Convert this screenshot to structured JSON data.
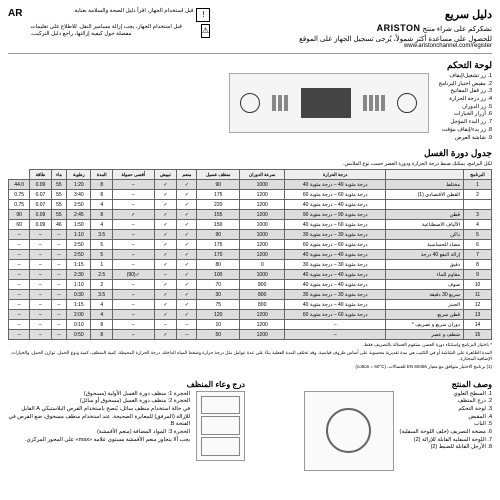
{
  "header": {
    "title": "دليل سريع",
    "thanks": "نشكركم على شراء منتج",
    "brand": "ARISTON",
    "support": "للحصول على مساعدة أكثر شمولاً، يُرجى تسجيل الجهاز على الموقع",
    "url": "www.aristonchannel.com/register",
    "warning": "قبل استخدام الجهاز، اقرأ دليل الصحة والسلامة بعناية.",
    "warning2": "قبل استخدام الجهاز، يجب إزالة مسامير النقل. للاطلاع على تعليمات مفصلة حول كيفية إزالتها، راجع دليل التركيب.",
    "lang": "AR"
  },
  "control_panel": {
    "title": "لوحة التحكم",
    "items": [
      "1. زر تشغيل/إيقاف",
      "2. مقبض اختيار البرنامج",
      "3. زر قفل المفاتيح",
      "4. زر درجة الحرارة",
      "5. زر الدوران",
      "6. أزرار الخيارات",
      "7. زر البدء المؤجل",
      "8. زر بدء/إيقاف مؤقت",
      "9. شاشة العرض"
    ]
  },
  "cycle_table": {
    "title": "جدول دورة الغسل",
    "desc": "لكل البرامج، يمكنك ضبط درجة الحرارة ودورة العصر حسب نوع الملابس.",
    "headers": [
      "البرنامج",
      "",
      "درجة الحرارة",
      "سرعة الدوران",
      "منظف غسيل",
      "منعم",
      "تبييض",
      "أقصى حمولة",
      "المدة",
      "رطوبة",
      "ماء",
      "طاقة"
    ],
    "rows": [
      {
        "n": 1,
        "name": "مختلط",
        "temps": "درجة مئوية 40 – درجة مئوية 40",
        "spin": 1000,
        "t": "90",
        "d1": "✓",
        "d2": "✓",
        "d3": "–",
        "load": 8,
        "dur": "1:20",
        "h": "55",
        "w": "0.09",
        "e": "44.0",
        "shade": true
      },
      {
        "n": 2,
        "name": "القطن الاقتصادي (1)",
        "temps": "درجة مئوية 60 – درجة مئوية 60",
        "spin": 1200,
        "t": "175",
        "d1": "✓",
        "d2": "✓",
        "d3": "–",
        "load": 8,
        "dur": "3:40",
        "h": "55",
        "w": "0.07",
        "e": "0.75",
        "shade": false
      },
      {
        "n": "",
        "name": "",
        "temps": "درجة مئوية 40 – درجة مئوية 40",
        "spin": 1200,
        "t": "220",
        "d1": "✓",
        "d2": "✓",
        "d3": "–",
        "load": 4,
        "dur": "2:50",
        "h": "55",
        "w": "0.07",
        "e": "0.75",
        "shade": false
      },
      {
        "n": 3,
        "name": "قطن",
        "temps": "درجة مئوية 90 – درجة مئوية 90",
        "spin": 1200,
        "t": "155",
        "d1": "✓",
        "d2": "✓",
        "d3": "✓",
        "load": 8,
        "dur": "2:45",
        "h": "55",
        "w": "0.09",
        "e": "90",
        "shade": true
      },
      {
        "n": 4,
        "name": "الألياف الاصطناعية",
        "temps": "درجة مئوية 60 – درجة مئوية 40",
        "spin": 1000,
        "t": "150",
        "d1": "✓",
        "d2": "✓",
        "d3": "–",
        "load": 4,
        "dur": "1:50",
        "h": "46",
        "w": "0.09",
        "e": "60",
        "shade": false
      },
      {
        "n": 5,
        "name": "داكن",
        "temps": "درجة مئوية 30 – درجة مئوية 30",
        "spin": 1000,
        "t": "90",
        "d1": "✓",
        "d2": "✓",
        "d3": "–",
        "load": 3.5,
        "dur": "1:10",
        "h": "–",
        "w": "–",
        "e": "–",
        "shade": true
      },
      {
        "n": 6,
        "name": "مضاد للحساسية",
        "temps": "درجة مئوية 60 – درجة مئوية 60",
        "spin": 1200,
        "t": "175",
        "d1": "✓",
        "d2": "✓",
        "d3": "–",
        "load": 5,
        "dur": "2:50",
        "h": "–",
        "w": "–",
        "e": "–",
        "shade": false
      },
      {
        "n": 7,
        "name": "إزالة البقع 40 درجة",
        "temps": "درجة مئوية 40 – درجة مئوية 40",
        "spin": 1200,
        "t": "170",
        "d1": "✓",
        "d2": "✓",
        "d3": "–",
        "load": 5,
        "dur": "2:50",
        "h": "–",
        "w": "–",
        "e": "–",
        "shade": true
      },
      {
        "n": 8,
        "name": "دقيق",
        "temps": "درجة مئوية 30 – درجة مئوية 30",
        "spin": 0,
        "t": "80",
        "d1": "✓",
        "d2": "✓",
        "d3": "–",
        "load": 1,
        "dur": "1:15",
        "h": "–",
        "w": "–",
        "e": "–",
        "shade": false
      },
      {
        "n": 9,
        "name": "مقاوم للماء",
        "temps": "درجة مئوية 40 – درجة مئوية 40",
        "spin": 1000,
        "t": "100",
        "d1": "✓",
        "d2": "–",
        "d3": "✓(90)",
        "load": 2.5,
        "dur": "2:30",
        "h": "–",
        "w": "–",
        "e": "–",
        "shade": true
      },
      {
        "n": 10,
        "name": "صوف",
        "temps": "درجة مئوية 40 – درجة مئوية 40",
        "spin": 800,
        "t": "70",
        "d1": "✓",
        "d2": "✓",
        "d3": "–",
        "load": 2,
        "dur": "1:10",
        "h": "–",
        "w": "–",
        "e": "–",
        "shade": false
      },
      {
        "n": 11,
        "name": "سريع 30 دقيقة",
        "temps": "درجة مئوية 30 – درجة مئوية 30",
        "spin": 800,
        "t": "30",
        "d1": "✓",
        "d2": "✓",
        "d3": "–",
        "load": 3.5,
        "dur": "0:30",
        "h": "–",
        "w": "–",
        "e": "–",
        "shade": true
      },
      {
        "n": 12,
        "name": "الجينز",
        "temps": "درجة مئوية 40 – درجة مئوية 40",
        "spin": 800,
        "t": "75",
        "d1": "✓",
        "d2": "✓",
        "d3": "–",
        "load": 4,
        "dur": "1:15",
        "h": "–",
        "w": "–",
        "e": "–",
        "shade": false
      },
      {
        "n": 13,
        "name": "قطن سريع",
        "temps": "درجة مئوية 60 – درجة مئوية 60",
        "spin": 1200,
        "t": "120",
        "d1": "✓",
        "d2": "✓",
        "d3": "–",
        "load": 4,
        "dur": "2:00",
        "h": "–",
        "w": "–",
        "e": "–",
        "shade": true
      },
      {
        "n": 14,
        "name": "دوران سريع و تصريف *",
        "temps": "–",
        "spin": 1200,
        "t": "10",
        "d1": "–",
        "d2": "–",
        "d3": "–",
        "load": 8,
        "dur": "0:10",
        "h": "–",
        "w": "–",
        "e": "–",
        "shade": false
      },
      {
        "n": 15,
        "name": "شطف و عصر",
        "temps": "–",
        "spin": 1200,
        "t": "50",
        "d1": "–",
        "d2": "✓",
        "d3": "–",
        "load": 8,
        "dur": "0:50",
        "h": "–",
        "w": "–",
        "e": "–",
        "shade": true
      }
    ],
    "footnotes": [
      "* باختيار البرنامج واستثناء دورة العصر، ستقوم الغسالة بالتصريف فقط.",
      "المدة الظاهرة على الشاشة أو في الكتيب هي مدة تقديرية محسوبة على أساس ظروف قياسية. وقد تختلف المدة الفعلية بناءً على عدة عوامل مثل درجة حرارة وضغط المياه الداخلة، درجة الحرارة المحيطة، كمية المنظف، كمية ونوع الحمل، توازن الحمل، والخيارات الإضافية المختارة.",
      "(1) برنامج الاختبار متوافق مع معيار EN 60456 للغسالات. (cotton = 60°C)"
    ]
  },
  "product_desc": {
    "title": "وصف المنتج",
    "items": [
      "1. السطح العلوي",
      "2. درج المنظف",
      "3. لوحة التحكم",
      "4. المقبض",
      "5. الباب",
      "6. مضخة التصريف (خلف اللوحة السفلية)",
      "7. اللوحة السفلية القابلة للإزالة (2)",
      "8. الأرجل القابلة للضبط (2)"
    ]
  },
  "detergent_drawer": {
    "title": "درج وعاء المنظف",
    "items": [
      "الحجرة 1: منظف دورة الغسل الأولية (مسحوق)",
      "الحجرة 2: منظف دورة الغسل (مسحوق أو سائل)",
      "في حالة استخدام منظف سائل، يُنصح باستخدام القرص البلاستيكي A القابل للإزالة (المرفق) للمعايرة الصحيحة. عند استخدام منظف مسحوق، ضع القرص في الفتحة B.",
      "الحجرة 3: المواد المضافة (منعم الأقمشة)",
      "يجب ألا يتجاوز منعم الأقمشة مستوى علامة «max» على المحور المركزي."
    ]
  }
}
